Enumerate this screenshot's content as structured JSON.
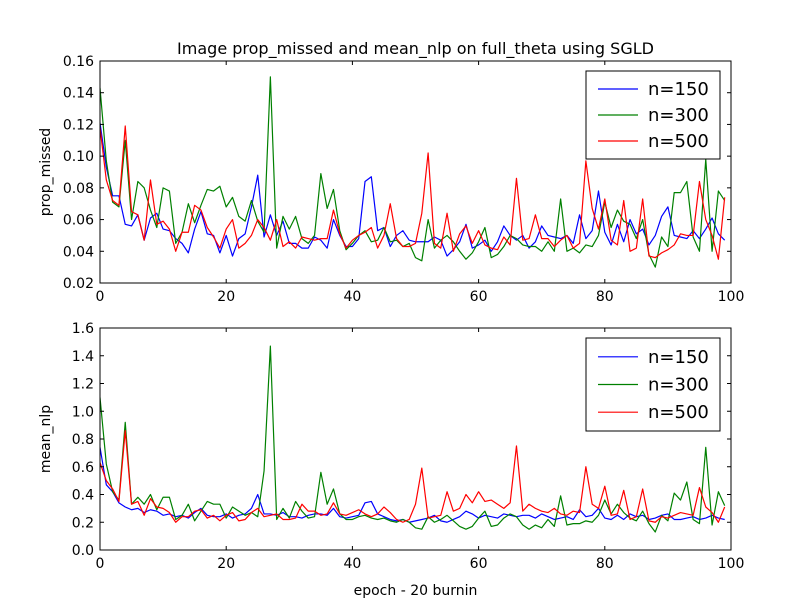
{
  "chart_data": [
    {
      "type": "line",
      "title": "Image prop_missed and mean_nlp on full_theta using SGLD",
      "xlabel": "",
      "ylabel": "prop_missed",
      "xlim": [
        0,
        100
      ],
      "ylim": [
        0.02,
        0.16
      ],
      "xticks": [
        "0",
        "20",
        "40",
        "60",
        "80",
        "100"
      ],
      "yticks": [
        "0.02",
        "0.04",
        "0.06",
        "0.08",
        "0.10",
        "0.12",
        "0.14",
        "0.16"
      ],
      "legend_placement": "top-right",
      "grid": false,
      "series": [
        {
          "name": "n=150",
          "color": "#0000ff",
          "values": [
            0.121,
            0.093,
            0.075,
            0.075,
            0.057,
            0.056,
            0.063,
            0.047,
            0.061,
            0.064,
            0.054,
            0.053,
            0.048,
            0.045,
            0.039,
            0.054,
            0.065,
            0.051,
            0.05,
            0.039,
            0.05,
            0.037,
            0.048,
            0.051,
            0.068,
            0.088,
            0.049,
            0.063,
            0.05,
            0.059,
            0.045,
            0.045,
            0.042,
            0.042,
            0.049,
            0.047,
            0.042,
            0.06,
            0.05,
            0.043,
            0.043,
            0.048,
            0.084,
            0.087,
            0.053,
            0.055,
            0.043,
            0.05,
            0.053,
            0.047,
            0.046,
            0.046,
            0.046,
            0.049,
            0.047,
            0.037,
            0.041,
            0.046,
            0.057,
            0.042,
            0.044,
            0.047,
            0.04,
            0.046,
            0.056,
            0.05,
            0.047,
            0.05,
            0.042,
            0.046,
            0.056,
            0.05,
            0.049,
            0.048,
            0.05,
            0.045,
            0.063,
            0.048,
            0.053,
            0.078,
            0.052,
            0.044,
            0.057,
            0.046,
            0.06,
            0.051,
            0.054,
            0.044,
            0.05,
            0.062,
            0.068,
            0.05,
            0.049,
            0.048,
            0.053,
            0.048,
            0.054,
            0.061,
            0.051,
            0.047
          ]
        },
        {
          "name": "n=300",
          "color": "#008000",
          "values": [
            0.143,
            0.097,
            0.071,
            0.068,
            0.11,
            0.06,
            0.084,
            0.08,
            0.066,
            0.055,
            0.08,
            0.078,
            0.045,
            0.052,
            0.07,
            0.058,
            0.069,
            0.079,
            0.078,
            0.081,
            0.068,
            0.074,
            0.062,
            0.059,
            0.072,
            0.059,
            0.052,
            0.15,
            0.042,
            0.062,
            0.054,
            0.062,
            0.048,
            0.045,
            0.05,
            0.089,
            0.067,
            0.079,
            0.053,
            0.041,
            0.045,
            0.05,
            0.053,
            0.046,
            0.047,
            0.055,
            0.046,
            0.047,
            0.043,
            0.045,
            0.036,
            0.034,
            0.06,
            0.042,
            0.047,
            0.05,
            0.046,
            0.04,
            0.035,
            0.039,
            0.046,
            0.055,
            0.036,
            0.038,
            0.043,
            0.05,
            0.048,
            0.044,
            0.043,
            0.043,
            0.04,
            0.046,
            0.04,
            0.073,
            0.04,
            0.042,
            0.039,
            0.044,
            0.043,
            0.05,
            0.071,
            0.055,
            0.066,
            0.059,
            0.057,
            0.048,
            0.06,
            0.038,
            0.03,
            0.049,
            0.043,
            0.077,
            0.077,
            0.084,
            0.049,
            0.04,
            0.098,
            0.04,
            0.078,
            0.072
          ]
        },
        {
          "name": "n=500",
          "color": "#ff0000",
          "values": [
            0.118,
            0.085,
            0.072,
            0.069,
            0.119,
            0.065,
            0.063,
            0.047,
            0.085,
            0.057,
            0.059,
            0.054,
            0.04,
            0.052,
            0.052,
            0.069,
            0.066,
            0.055,
            0.049,
            0.042,
            0.054,
            0.06,
            0.042,
            0.045,
            0.05,
            0.06,
            0.055,
            0.047,
            0.06,
            0.043,
            0.046,
            0.042,
            0.049,
            0.048,
            0.047,
            0.048,
            0.048,
            0.066,
            0.051,
            0.042,
            0.047,
            0.05,
            0.052,
            0.055,
            0.042,
            0.05,
            0.07,
            0.048,
            0.043,
            0.043,
            0.045,
            0.064,
            0.102,
            0.045,
            0.042,
            0.064,
            0.04,
            0.051,
            0.056,
            0.045,
            0.053,
            0.044,
            0.042,
            0.041,
            0.049,
            0.044,
            0.086,
            0.047,
            0.048,
            0.063,
            0.048,
            0.048,
            0.043,
            0.047,
            0.05,
            0.042,
            0.045,
            0.097,
            0.067,
            0.054,
            0.073,
            0.047,
            0.044,
            0.072,
            0.04,
            0.042,
            0.073,
            0.037,
            0.036,
            0.039,
            0.041,
            0.044,
            0.051,
            0.05,
            0.05,
            0.084,
            0.06,
            0.05,
            0.035,
            0.074
          ]
        }
      ]
    },
    {
      "type": "line",
      "title": "",
      "xlabel": "epoch - 20 burnin",
      "ylabel": "mean_nlp",
      "xlim": [
        0,
        100
      ],
      "ylim": [
        0.0,
        1.6
      ],
      "xticks": [
        "0",
        "20",
        "40",
        "60",
        "80",
        "100"
      ],
      "yticks": [
        "0.0",
        "0.2",
        "0.4",
        "0.6",
        "0.8",
        "1.0",
        "1.2",
        "1.4",
        "1.6"
      ],
      "legend_placement": "top-right",
      "grid": false,
      "series": [
        {
          "name": "n=150",
          "color": "#0000ff",
          "values": [
            0.74,
            0.47,
            0.42,
            0.34,
            0.31,
            0.29,
            0.3,
            0.27,
            0.29,
            0.28,
            0.25,
            0.26,
            0.24,
            0.25,
            0.23,
            0.27,
            0.3,
            0.25,
            0.24,
            0.24,
            0.26,
            0.23,
            0.25,
            0.26,
            0.3,
            0.4,
            0.26,
            0.26,
            0.25,
            0.27,
            0.24,
            0.24,
            0.23,
            0.25,
            0.26,
            0.26,
            0.25,
            0.3,
            0.24,
            0.23,
            0.24,
            0.25,
            0.34,
            0.35,
            0.26,
            0.24,
            0.22,
            0.21,
            0.22,
            0.2,
            0.21,
            0.22,
            0.23,
            0.25,
            0.21,
            0.2,
            0.22,
            0.24,
            0.28,
            0.26,
            0.23,
            0.25,
            0.24,
            0.23,
            0.26,
            0.25,
            0.24,
            0.25,
            0.25,
            0.23,
            0.26,
            0.24,
            0.22,
            0.23,
            0.24,
            0.22,
            0.29,
            0.24,
            0.25,
            0.3,
            0.23,
            0.22,
            0.25,
            0.22,
            0.26,
            0.24,
            0.25,
            0.22,
            0.23,
            0.25,
            0.26,
            0.22,
            0.22,
            0.23,
            0.24,
            0.22,
            0.23,
            0.25,
            0.23,
            0.22
          ]
        },
        {
          "name": "n=300",
          "color": "#008000",
          "values": [
            1.1,
            0.62,
            0.42,
            0.36,
            0.92,
            0.33,
            0.38,
            0.33,
            0.4,
            0.29,
            0.38,
            0.38,
            0.22,
            0.25,
            0.33,
            0.21,
            0.28,
            0.35,
            0.33,
            0.33,
            0.23,
            0.31,
            0.28,
            0.25,
            0.27,
            0.24,
            0.57,
            1.47,
            0.22,
            0.3,
            0.23,
            0.35,
            0.28,
            0.23,
            0.24,
            0.56,
            0.33,
            0.44,
            0.26,
            0.22,
            0.22,
            0.24,
            0.25,
            0.23,
            0.22,
            0.23,
            0.21,
            0.2,
            0.22,
            0.2,
            0.16,
            0.15,
            0.24,
            0.2,
            0.22,
            0.25,
            0.21,
            0.17,
            0.15,
            0.17,
            0.23,
            0.28,
            0.17,
            0.18,
            0.23,
            0.26,
            0.24,
            0.18,
            0.15,
            0.18,
            0.16,
            0.22,
            0.17,
            0.39,
            0.18,
            0.19,
            0.19,
            0.21,
            0.2,
            0.25,
            0.36,
            0.26,
            0.33,
            0.27,
            0.23,
            0.21,
            0.28,
            0.19,
            0.13,
            0.25,
            0.21,
            0.41,
            0.36,
            0.49,
            0.22,
            0.19,
            0.74,
            0.18,
            0.42,
            0.32
          ]
        },
        {
          "name": "n=500",
          "color": "#ff0000",
          "values": [
            0.63,
            0.5,
            0.44,
            0.35,
            0.86,
            0.33,
            0.35,
            0.25,
            0.37,
            0.31,
            0.3,
            0.27,
            0.2,
            0.24,
            0.24,
            0.28,
            0.29,
            0.23,
            0.25,
            0.21,
            0.25,
            0.27,
            0.21,
            0.22,
            0.27,
            0.3,
            0.24,
            0.25,
            0.26,
            0.22,
            0.22,
            0.23,
            0.33,
            0.28,
            0.28,
            0.25,
            0.26,
            0.34,
            0.26,
            0.25,
            0.27,
            0.29,
            0.26,
            0.24,
            0.26,
            0.31,
            0.27,
            0.22,
            0.2,
            0.22,
            0.33,
            0.59,
            0.23,
            0.24,
            0.25,
            0.42,
            0.28,
            0.3,
            0.4,
            0.34,
            0.42,
            0.35,
            0.36,
            0.33,
            0.3,
            0.34,
            0.75,
            0.28,
            0.33,
            0.3,
            0.28,
            0.27,
            0.3,
            0.26,
            0.25,
            0.28,
            0.27,
            0.6,
            0.33,
            0.3,
            0.46,
            0.25,
            0.26,
            0.43,
            0.22,
            0.24,
            0.44,
            0.21,
            0.2,
            0.24,
            0.23,
            0.25,
            0.27,
            0.26,
            0.25,
            0.45,
            0.31,
            0.27,
            0.2,
            0.31
          ]
        }
      ]
    }
  ]
}
